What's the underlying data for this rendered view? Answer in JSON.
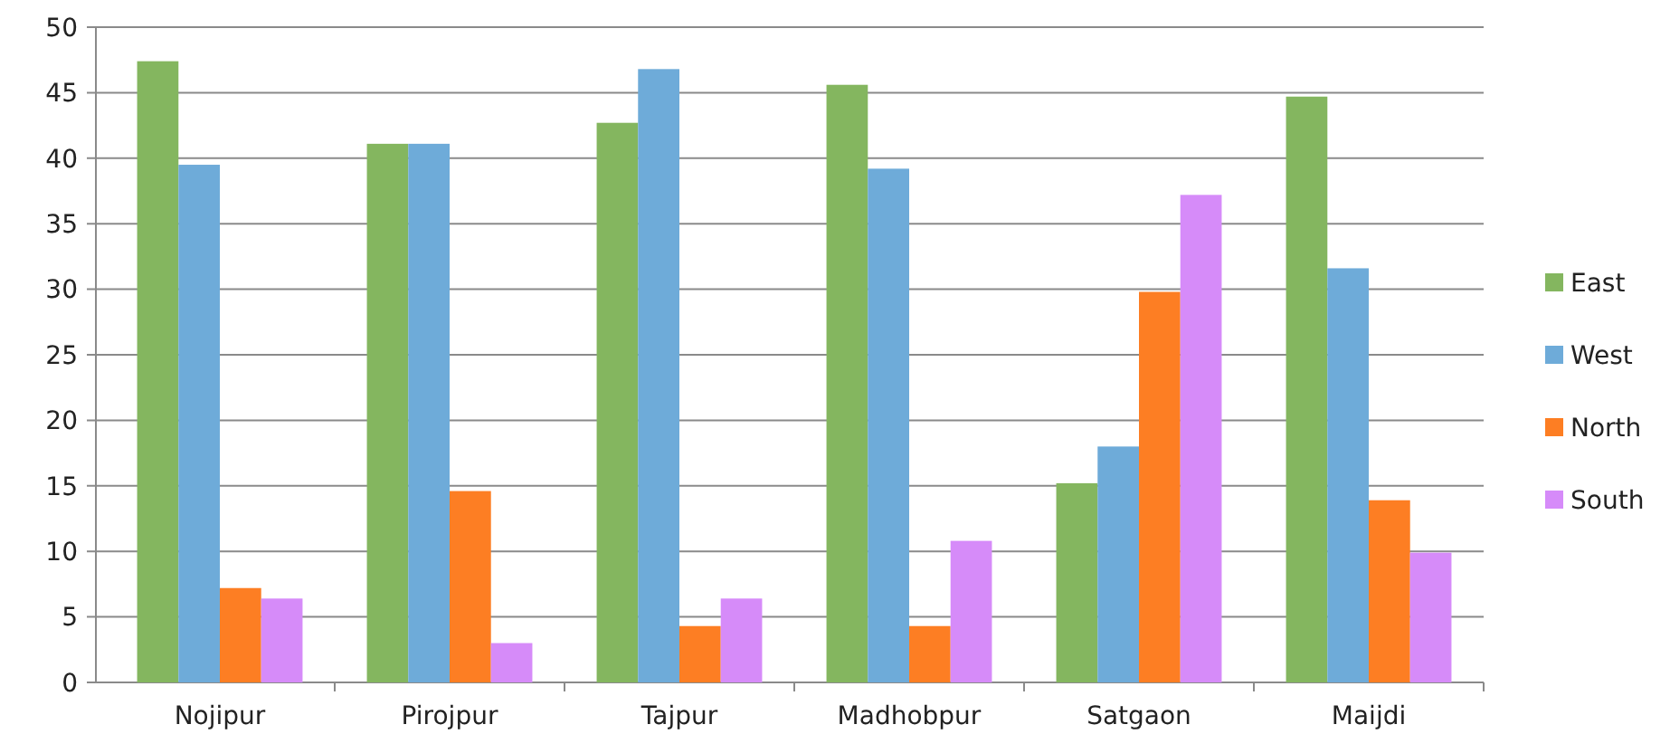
{
  "chart_data": {
    "type": "bar",
    "categories": [
      "Nojipur",
      "Pirojpur",
      "Tajpur",
      "Madhobpur",
      "Satgaon",
      "Maijdi"
    ],
    "series": [
      {
        "name": "East",
        "color": "#84b65f",
        "values": [
          47.4,
          41.1,
          42.7,
          45.6,
          15.2,
          44.7
        ]
      },
      {
        "name": "West",
        "color": "#6eabd9",
        "values": [
          39.5,
          41.1,
          46.8,
          39.2,
          18.0,
          31.6
        ]
      },
      {
        "name": "North",
        "color": "#fd7e23",
        "values": [
          7.2,
          14.6,
          4.3,
          4.3,
          29.8,
          13.9
        ]
      },
      {
        "name": "South",
        "color": "#d68bf9",
        "values": [
          6.4,
          3.0,
          6.4,
          10.8,
          37.2,
          9.9
        ]
      }
    ],
    "ylim": [
      0,
      50
    ],
    "yticks": [
      0,
      5,
      10,
      15,
      20,
      25,
      30,
      35,
      40,
      45,
      50
    ],
    "grid": "y",
    "legend": "right"
  }
}
